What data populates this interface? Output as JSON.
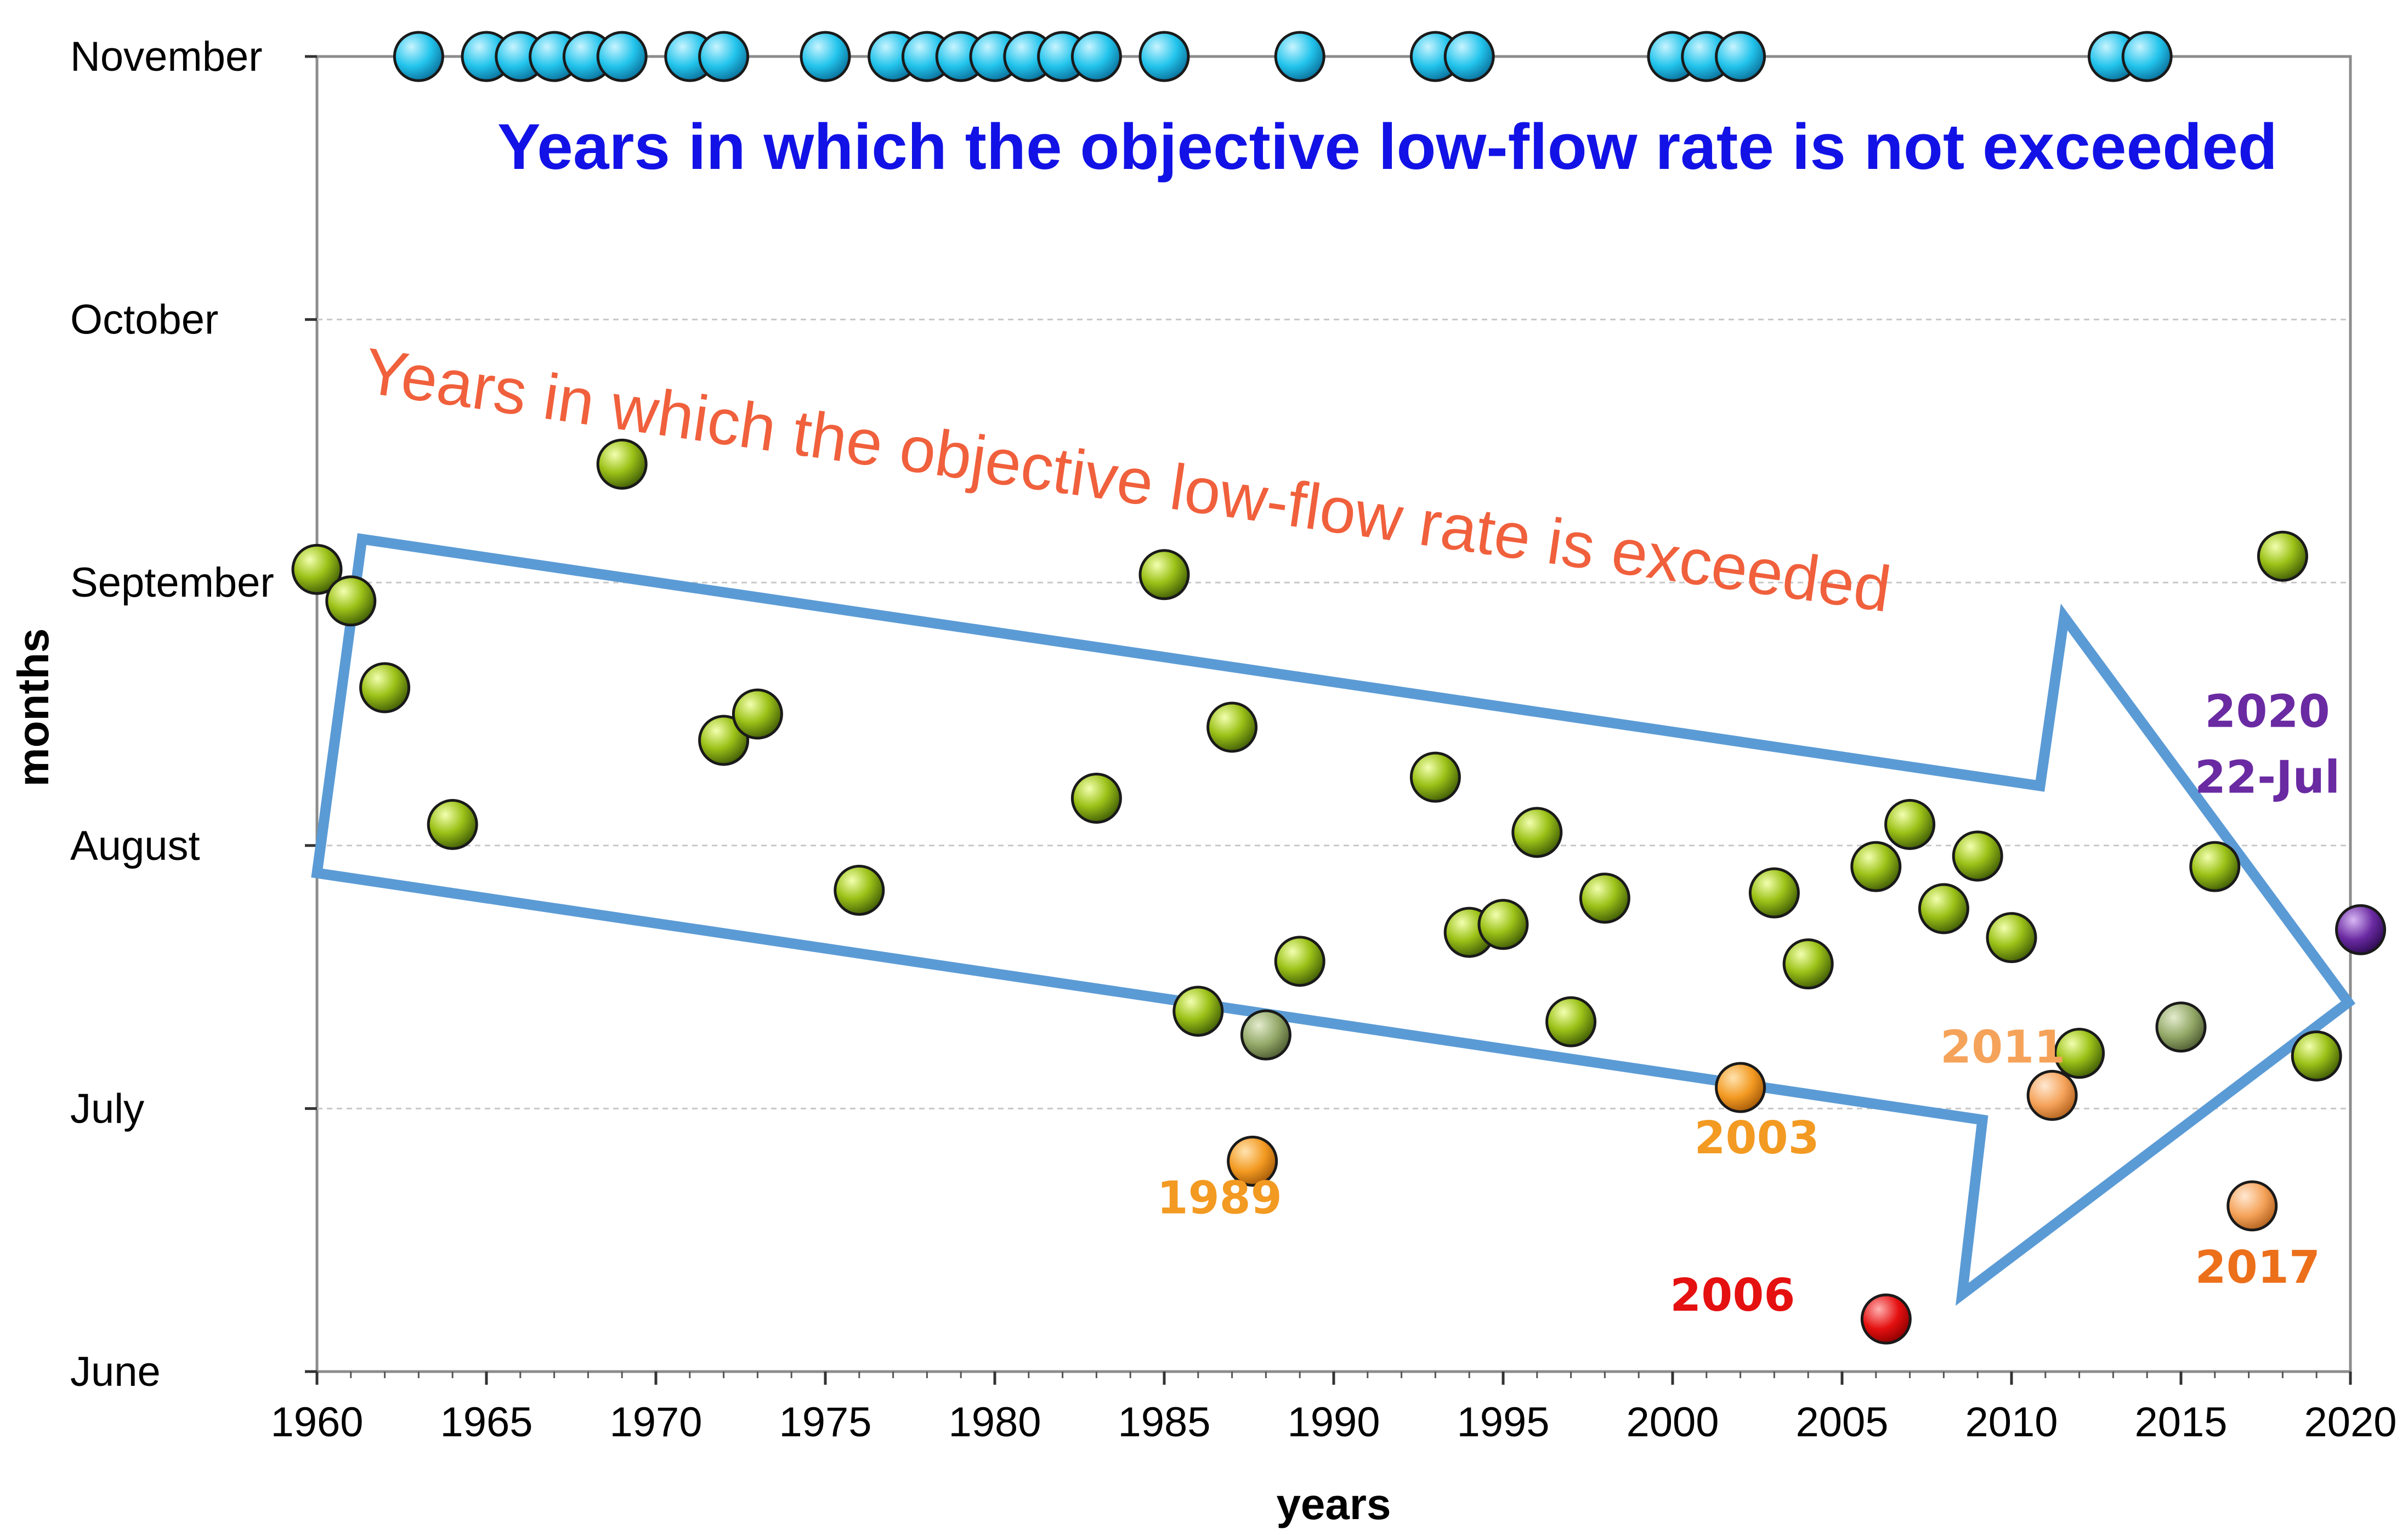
{
  "chart_data": {
    "type": "scatter",
    "xlabel": "years",
    "ylabel": "months",
    "xlim": [
      1960,
      2020
    ],
    "x_ticks": [
      "1960",
      "1965",
      "1970",
      "1975",
      "1980",
      "1985",
      "1990",
      "1995",
      "2000",
      "2005",
      "2010",
      "2015",
      "2020"
    ],
    "y_ticks": [
      "June",
      "July",
      "August",
      "September",
      "October",
      "November"
    ],
    "y_ticks_note": "y values are month positions: June=6, July=7, August=8, September=9, October=10, November=11",
    "grid": "horizontal dashed",
    "titles": {
      "not_exceeded": "Years in which the objective low-flow rate is not exceeded",
      "exceeded": "Years in which the objective low-flow rate is exceeded"
    },
    "colors": {
      "not_exceeded": "#22c4ec",
      "exceeded": "#9cc218",
      "exceeded_faded": "#93a868",
      "highlight_orange": "#f39a22",
      "highlight_red": "#e51010",
      "highlight_purple": "#6a2aa2",
      "trend_arrow": "#5b9bd5"
    },
    "series": [
      {
        "name": "not_exceeded",
        "color": "#22c4ec",
        "x": [
          1963,
          1965,
          1966,
          1967,
          1968,
          1969,
          1971,
          1972,
          1975,
          1977,
          1978,
          1979,
          1980,
          1981,
          1982,
          1983,
          1985,
          1989,
          1993,
          1994,
          2000,
          2001,
          2002,
          2013,
          2014
        ],
        "y": [
          11,
          11,
          11,
          11,
          11,
          11,
          11,
          11,
          11,
          11,
          11,
          11,
          11,
          11,
          11,
          11,
          11,
          11,
          11,
          11,
          11,
          11,
          11,
          11,
          11
        ]
      },
      {
        "name": "exceeded",
        "color": "#9cc218",
        "x": [
          1960,
          1961,
          1962,
          1964,
          1969,
          1972,
          1973,
          1976,
          1983,
          1985,
          1986,
          1987,
          1989,
          1993,
          1994,
          1995,
          1996,
          1997,
          1998,
          2003,
          2004,
          2006,
          2007,
          2008,
          2009,
          2010,
          2012,
          2016,
          2018,
          2019
        ],
        "y": [
          9.05,
          8.93,
          8.6,
          8.08,
          9.45,
          8.4,
          8.5,
          7.83,
          8.18,
          9.03,
          7.37,
          8.45,
          7.56,
          8.26,
          7.67,
          7.7,
          8.05,
          7.33,
          7.8,
          7.82,
          7.55,
          7.92,
          8.08,
          7.76,
          7.96,
          7.65,
          7.21,
          7.92,
          9.1,
          7.2
        ]
      },
      {
        "name": "exceeded_faded",
        "color": "#93a868",
        "x": [
          1988,
          2015
        ],
        "y": [
          7.28,
          7.31
        ]
      },
      {
        "name": "highlighted",
        "points": [
          {
            "year": 1989,
            "x": 1987.6,
            "y": 6.8,
            "label": "1989",
            "color": "#f39a22"
          },
          {
            "year": 2003,
            "x": 2002.0,
            "y": 7.08,
            "label": "2003",
            "color": "#f39a22"
          },
          {
            "year": 2006,
            "x": 2006.3,
            "y": 6.2,
            "label": "2006",
            "color": "#e51010"
          },
          {
            "year": 2011,
            "x": 2011.2,
            "y": 7.05,
            "label": "2011",
            "color": "#f5a35a"
          },
          {
            "year": 2017,
            "x": 2017.1,
            "y": 6.63,
            "label": "2017",
            "color": "#ec8a2e"
          },
          {
            "year": 2020,
            "x": 2020.3,
            "y": 7.68,
            "label": "2020",
            "sublabel": "22-Jul",
            "color": "#6a2aa2"
          }
        ]
      }
    ]
  }
}
